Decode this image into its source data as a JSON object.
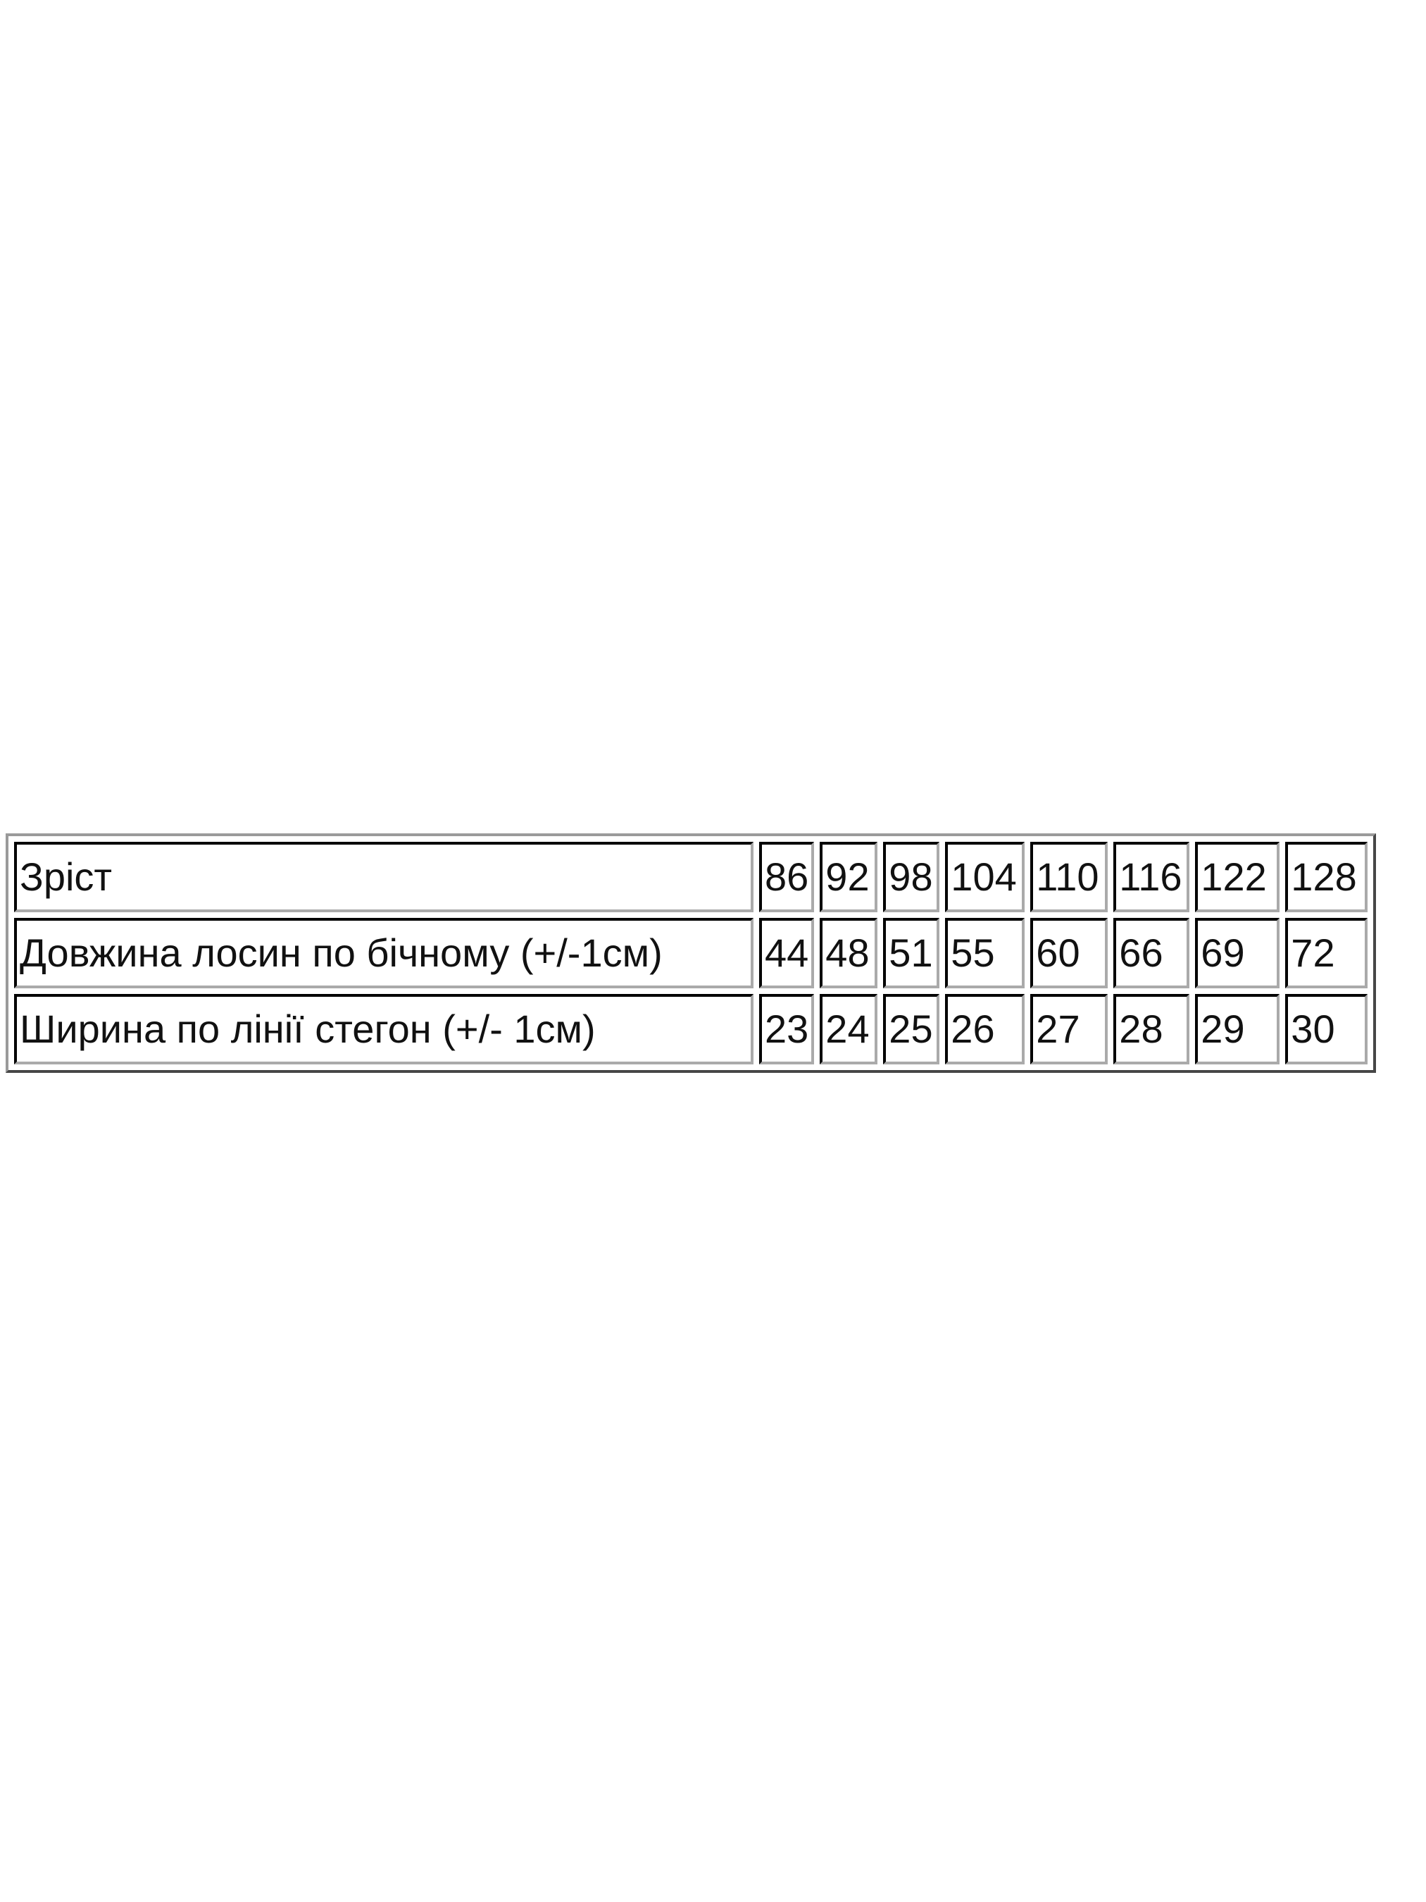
{
  "size_table": {
    "rows": [
      {
        "label": "Зріст",
        "values": [
          "86",
          "92",
          "98",
          "104",
          "110",
          "116",
          "122",
          "128"
        ]
      },
      {
        "label": "Довжина лосин по бічному (+/-1см)",
        "values": [
          "44",
          "48",
          "51",
          "55",
          "60",
          "66",
          "69",
          "72"
        ]
      },
      {
        "label": "Ширина по лінії стегон (+/- 1см)",
        "values": [
          "23",
          "24",
          "25",
          "26",
          "27",
          "28",
          "29",
          "30"
        ]
      }
    ]
  }
}
